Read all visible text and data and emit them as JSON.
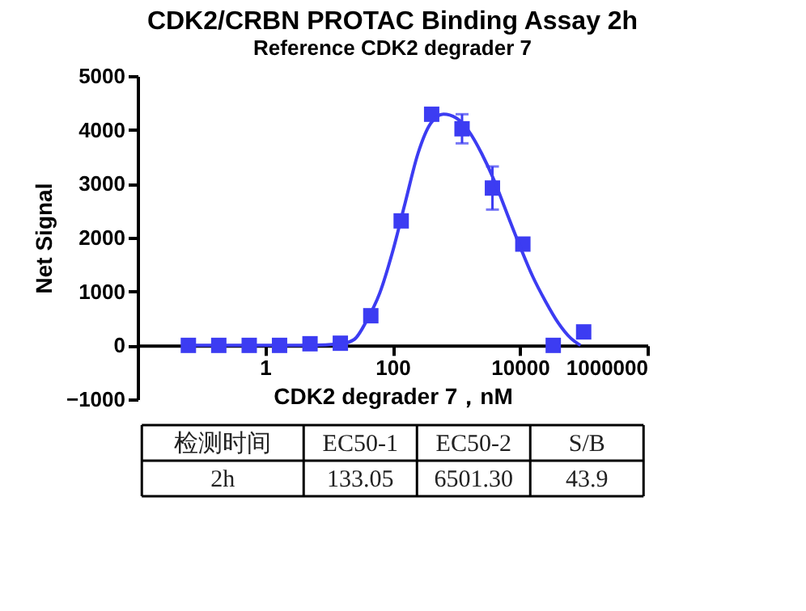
{
  "chart_data": {
    "type": "scatter",
    "title": "CDK2/CRBN PROTAC Binding Assay 2h",
    "subtitle": "Reference CDK2 degrader 7",
    "xlabel": "CDK2 degrader 7，nM",
    "ylabel": "Net Signal",
    "log": "x",
    "xlim": [
      0.01,
      1000000
    ],
    "xticks": [
      1,
      100,
      10000,
      1000000
    ],
    "ylim": [
      -1000,
      5000
    ],
    "yticks": [
      -1000,
      0,
      1000,
      2000,
      3000,
      4000,
      5000
    ],
    "grid": false,
    "marker": "square",
    "series": [
      {
        "type": "scatter",
        "color": "#3c3cf2",
        "x": [
          0.0627,
          0.188,
          0.565,
          1.69,
          5.08,
          15.2,
          45.7,
          137,
          412,
          1235,
          3704,
          11111,
          33333,
          100000
        ],
        "values": [
          0,
          0,
          0,
          0,
          30,
          40,
          550,
          2310,
          4290,
          4020,
          2920,
          1880,
          0,
          250
        ],
        "errors": [
          null,
          null,
          null,
          null,
          null,
          null,
          null,
          null,
          null,
          270,
          400,
          null,
          null,
          null
        ]
      },
      {
        "type": "line",
        "color": "#3c3cf2",
        "line_style": "solid",
        "marker": "none",
        "x": [
          0.0627,
          1,
          5,
          15.85,
          25.1,
          39.8,
          63.1,
          100,
          158.5,
          251,
          398,
          631,
          1000,
          1585,
          2512,
          3981,
          6310,
          10000,
          15849,
          25119,
          39811,
          63096,
          89125
        ],
        "values": [
          0,
          0,
          0,
          30,
          110,
          470,
          970,
          1730,
          2650,
          3560,
          4120,
          4290,
          4220,
          3970,
          3560,
          3050,
          2440,
          1840,
          1280,
          820,
          420,
          130,
          0
        ]
      }
    ],
    "annotations": [
      "检测时间",
      "EC50-1",
      "EC50-2",
      "S/B",
      "2h",
      "133.05",
      "6501.30",
      "43.9"
    ]
  }
}
